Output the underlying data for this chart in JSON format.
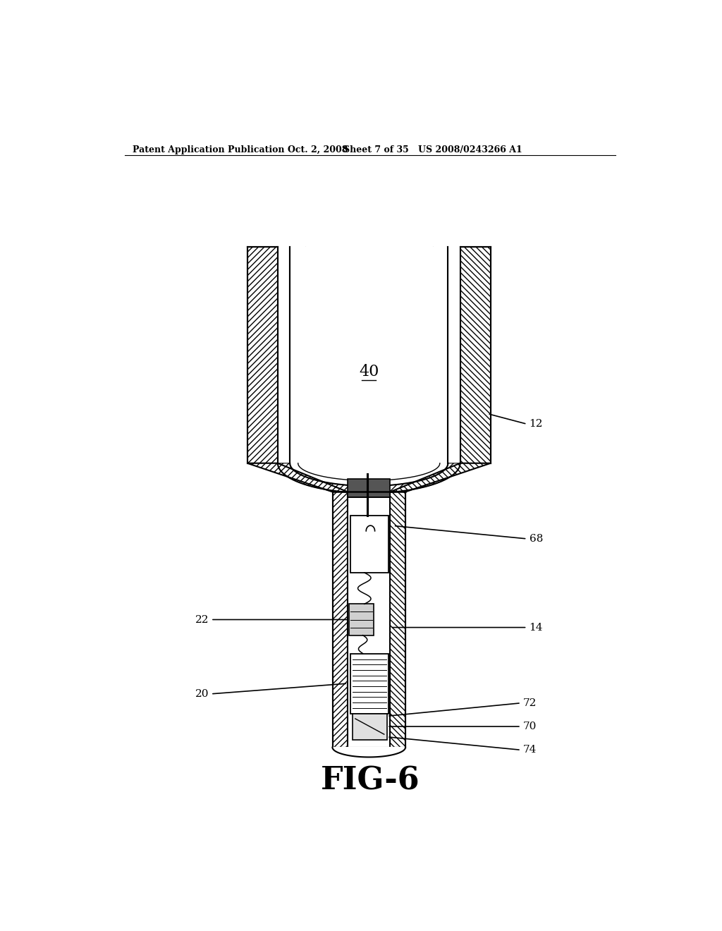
{
  "title_left": "Patent Application Publication",
  "title_date": "Oct. 2, 2008",
  "title_sheet": "Sheet 7 of 35",
  "title_patent": "US 2008/0243266 A1",
  "fig_label": "FIG-6",
  "bg_color": "#ffffff",
  "line_color": "#000000",
  "label_40": "40",
  "label_12": "12",
  "label_68": "68",
  "label_22": "22",
  "label_14": "14",
  "label_20": "20",
  "label_72": "72",
  "label_70": "70",
  "label_74": "74"
}
